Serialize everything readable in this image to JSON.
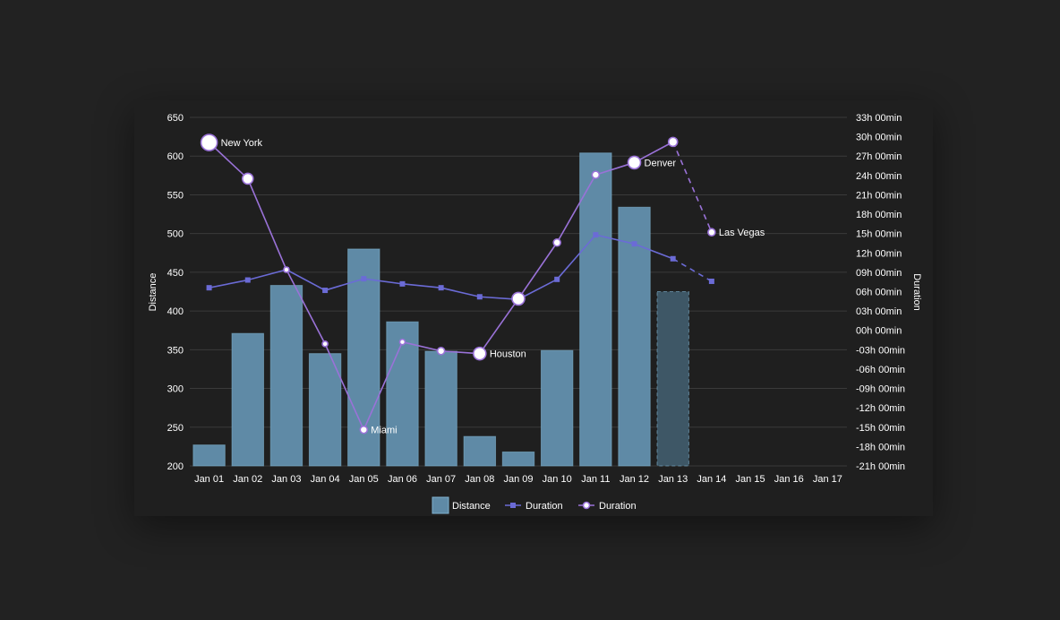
{
  "colors": {
    "background": "#222222",
    "card": "#1f1f1f",
    "grid": "#3a3a3a",
    "text": "#ffffff",
    "bar_fill": "#5f8aa6",
    "bar_stroke": "#7fb2cf",
    "bar_future_fill": "#3e5766",
    "series_square": "#6b6bd6",
    "series_circle": "#9a72d8",
    "marker_fill": "#ffffff"
  },
  "chart_data": {
    "type": "bar",
    "categories": [
      "Jan 01",
      "Jan 02",
      "Jan 03",
      "Jan 04",
      "Jan 05",
      "Jan 06",
      "Jan 07",
      "Jan 08",
      "Jan 09",
      "Jan 10",
      "Jan 11",
      "Jan 12",
      "Jan 13",
      "Jan 14",
      "Jan 15",
      "Jan 16",
      "Jan 17"
    ],
    "ylabel_left": "Distance",
    "ylabel_right": "Duration",
    "ylim_left": [
      200,
      650
    ],
    "yticks_left": [
      200,
      250,
      300,
      350,
      400,
      450,
      500,
      550,
      600,
      650
    ],
    "ylim_right_hours": [
      -21,
      33
    ],
    "yticks_right_hours": [
      -21,
      -18,
      -15,
      -12,
      -9,
      -6,
      -3,
      0,
      3,
      6,
      9,
      12,
      15,
      18,
      21,
      24,
      27,
      30,
      33
    ],
    "yticks_right_labels": [
      "-21h 00min",
      "-18h 00min",
      "-15h 00min",
      "-12h 00min",
      "-09h 00min",
      "-06h 00min",
      "-03h 00min",
      "00h 00min",
      "03h 00min",
      "06h 00min",
      "09h 00min",
      "12h 00min",
      "15h 00min",
      "18h 00min",
      "21h 00min",
      "24h 00min",
      "27h 00min",
      "30h 00min",
      "33h 00min"
    ],
    "legend": [
      "Distance",
      "Duration",
      "Duration"
    ],
    "series": [
      {
        "name": "Distance",
        "kind": "bar",
        "axis": "left",
        "values": [
          227,
          371,
          433,
          345,
          480,
          386,
          348,
          238,
          218,
          349,
          604,
          534,
          425,
          null,
          null,
          null,
          null
        ],
        "future_from_index": 12
      },
      {
        "name": "Duration",
        "kind": "line-square",
        "axis": "right",
        "values_hours": [
          6.6,
          7.8,
          9.4,
          6.2,
          8.0,
          7.2,
          6.6,
          5.2,
          4.8,
          7.9,
          14.8,
          13.4,
          11.1,
          7.6,
          null,
          null,
          null
        ],
        "dashed_from_index": 12
      },
      {
        "name": "Duration",
        "kind": "line-circle",
        "axis": "right",
        "values_hours": [
          29.1,
          23.5,
          9.4,
          -2.1,
          -15.4,
          -1.8,
          -3.2,
          -3.6,
          4.9,
          13.6,
          24.1,
          26.0,
          29.2,
          15.2,
          null,
          null,
          null
        ],
        "marker_sizes": [
          9,
          6,
          3,
          3,
          4,
          3,
          4,
          7,
          7,
          4,
          4,
          7,
          5,
          4,
          null,
          null,
          null
        ],
        "dashed_from_index": 12
      }
    ],
    "annotations": [
      {
        "index": 0,
        "text": "New York"
      },
      {
        "index": 4,
        "text": "Miami"
      },
      {
        "index": 7,
        "text": "Houston"
      },
      {
        "index": 11,
        "text": "Denver"
      },
      {
        "index": 13,
        "text": "Las Vegas"
      }
    ]
  }
}
